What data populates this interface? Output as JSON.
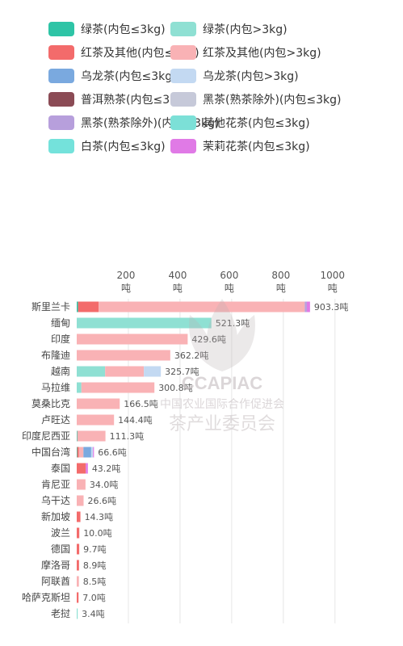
{
  "chart_data": {
    "type": "bar",
    "stacked": true,
    "orientation": "horizontal",
    "title": "",
    "xlabel": "",
    "ylabel": "",
    "xlim": [
      0,
      1000
    ],
    "x_ticks": [
      {
        "value": 200,
        "label": "200\n吨"
      },
      {
        "value": 400,
        "label": "400\n吨"
      },
      {
        "value": 600,
        "label": "600\n吨"
      },
      {
        "value": 800,
        "label": "800\n吨"
      },
      {
        "value": 1000,
        "label": "1000\n吨"
      }
    ],
    "grid": true,
    "legend_position": "top",
    "categories": [
      "斯里兰卡",
      "缅甸",
      "印度",
      "布隆迪",
      "越南",
      "马拉维",
      "莫桑比克",
      "卢旺达",
      "印度尼西亚",
      "中国台湾",
      "泰国",
      "肯尼亚",
      "乌干达",
      "新加坡",
      "波兰",
      "德国",
      "摩洛哥",
      "阿联酋",
      "哈萨克斯坦",
      "老挝"
    ],
    "totals": [
      "903.3吨",
      "521.3吨",
      "429.6吨",
      "362.2吨",
      "325.7吨",
      "300.8吨",
      "166.5吨",
      "144.4吨",
      "111.3吨",
      "66.6吨",
      "43.2吨",
      "34.0吨",
      "26.6吨",
      "14.3吨",
      "10.0吨",
      "9.7吨",
      "8.9吨",
      "8.5吨",
      "7.0吨",
      "3.4吨"
    ],
    "series": [
      {
        "name": "绿茶(内包≤3kg)",
        "color": "#2ec4a6",
        "values": [
          5,
          0,
          0,
          0,
          0,
          0,
          0,
          0,
          2,
          2,
          0,
          0,
          0,
          0,
          0,
          0,
          0,
          0,
          0,
          0
        ]
      },
      {
        "name": "绿茶(内包>3kg)",
        "color": "#8fe0d3",
        "values": [
          0,
          521.3,
          0,
          0,
          110,
          18,
          0,
          0,
          0,
          0,
          0,
          0,
          0,
          0,
          0,
          0,
          0,
          0,
          0,
          3.4
        ]
      },
      {
        "name": "红茶及其他(内包≤3kg)",
        "color": "#f36b6b",
        "values": [
          80,
          0,
          0,
          0,
          0,
          0,
          0,
          0,
          0,
          6,
          35,
          0,
          0,
          14.3,
          10,
          9.7,
          8.9,
          0,
          7,
          0
        ]
      },
      {
        "name": "红茶及其他(内包>3kg)",
        "color": "#f9b2b5",
        "values": [
          798,
          0,
          429.6,
          362.2,
          150,
          282.8,
          166.5,
          144.4,
          109.3,
          18,
          0,
          34,
          26.6,
          0,
          0,
          0,
          0,
          8.5,
          0,
          0
        ]
      },
      {
        "name": "乌龙茶(内包≤3kg)",
        "color": "#7aa9df",
        "values": [
          0,
          0,
          0,
          0,
          0,
          0,
          0,
          0,
          0,
          30,
          0,
          0,
          0,
          0,
          0,
          0,
          0,
          0,
          0,
          0
        ]
      },
      {
        "name": "乌龙茶(内包>3kg)",
        "color": "#c3d9f2",
        "values": [
          0,
          0,
          0,
          0,
          65.7,
          0,
          0,
          0,
          0,
          7,
          0,
          0,
          0,
          0,
          0,
          0,
          0,
          0,
          0,
          0
        ]
      },
      {
        "name": "普洱熟茶(内包≤3kg)",
        "color": "#8b4b55",
        "values": [
          0,
          0,
          0,
          0,
          0,
          0,
          0,
          0,
          0,
          0,
          0,
          0,
          0,
          0,
          0,
          0,
          0,
          0,
          0,
          0
        ]
      },
      {
        "name": "黑茶(熟茶除外)(内包≤3kg)",
        "color": "#c6c9d9",
        "values": [
          0,
          0,
          0,
          0,
          0,
          0,
          0,
          0,
          0,
          0,
          0,
          0,
          0,
          0,
          0,
          0,
          0,
          0,
          0,
          0
        ]
      },
      {
        "name": "黑茶(熟茶除外)(内包>3kg)",
        "color": "#b79fdc",
        "values": [
          8,
          0,
          0,
          0,
          0,
          0,
          0,
          0,
          0,
          0,
          0,
          0,
          0,
          0,
          0,
          0,
          0,
          0,
          0,
          0
        ]
      },
      {
        "name": "其他花茶(内包≤3kg)",
        "color": "#7ce0d7",
        "values": [
          0,
          0,
          0,
          0,
          0,
          0,
          0,
          0,
          0,
          0,
          0,
          0,
          0,
          0,
          0,
          0,
          0,
          0,
          0,
          0
        ]
      },
      {
        "name": "白茶(内包≤3kg)",
        "color": "#74e2db",
        "values": [
          0,
          0,
          0,
          0,
          0,
          0,
          0,
          0,
          0,
          0,
          0,
          0,
          0,
          0,
          0,
          0,
          0,
          0,
          0,
          0
        ]
      },
      {
        "name": "茉莉花茶(内包≤3kg)",
        "color": "#e07ae6",
        "values": [
          12.3,
          0,
          0,
          0,
          0,
          0,
          0,
          0,
          0,
          3.6,
          8.2,
          0,
          0,
          0,
          0,
          0,
          0,
          0,
          0,
          0
        ]
      }
    ]
  },
  "watermark": {
    "line1": "CCAPIAC",
    "line2": "中国农业国际合作促进会",
    "line3": "茶产业委员会"
  }
}
